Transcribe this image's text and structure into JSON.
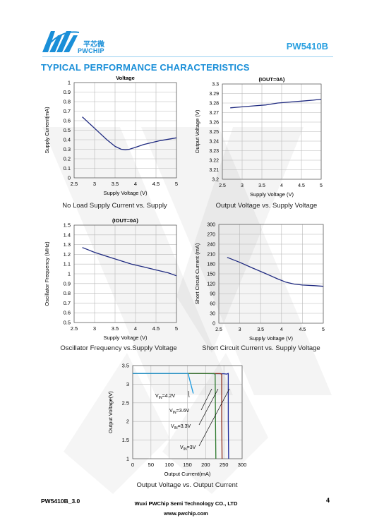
{
  "header": {
    "logo_cn": "平芯微",
    "logo_en": "PWCHIP",
    "part_number": "PW5410B",
    "section_title": "TYPICAL PERFORMANCE CHARACTERISTICS"
  },
  "captions": [
    "No Load Supply Current vs. Supply",
    "Output Voltage vs. Supply Voltage",
    "Oscillator Frequency vs.Supply Voltage",
    "Short Circuit Current vs. Supply Voltage",
    "Output Voltage vs. Output Current"
  ],
  "footer": {
    "doc_id": "PW5410B_3.0",
    "company": "Wuxi PWChip Semi Technology CO., LTD",
    "website": "www.pwchip.com",
    "page": "4"
  },
  "chart_data": [
    {
      "type": "line",
      "title": "Voltage",
      "xlabel": "Supply Voltage (V)",
      "ylabel": "Supply Current(mA)",
      "xlim": [
        2.5,
        5
      ],
      "ylim": [
        0,
        1
      ],
      "xticks": [
        2.5,
        3,
        3.5,
        4,
        4.5,
        5
      ],
      "xtick_labels": [
        "2.5",
        "3",
        "3.5",
        "4",
        "4.5",
        "5"
      ],
      "yticks": [
        0,
        0.1,
        0.2,
        0.3,
        0.4,
        0.5,
        0.6,
        0.7,
        0.8,
        0.9,
        1
      ],
      "ytick_labels": [
        "0",
        "0.1",
        "0.2",
        "0.3",
        "0.4",
        "0.5",
        "0.6",
        "0.7",
        "0.8",
        "0.9",
        "1"
      ],
      "grid": true,
      "series": [
        {
          "color": "#1f2a80",
          "x": [
            2.7,
            2.9,
            3.1,
            3.3,
            3.5,
            3.65,
            3.75,
            3.85,
            4.0,
            4.2,
            4.4,
            4.6,
            4.8,
            5.0
          ],
          "y": [
            0.64,
            0.56,
            0.48,
            0.4,
            0.33,
            0.3,
            0.295,
            0.3,
            0.32,
            0.35,
            0.37,
            0.39,
            0.405,
            0.42
          ]
        }
      ]
    },
    {
      "type": "line",
      "title": "(IOUT=0A)",
      "xlabel": "Supply Voltage (V)",
      "ylabel": "Output Voltage (V)",
      "xlim": [
        2.5,
        5
      ],
      "ylim": [
        3.2,
        3.3
      ],
      "xticks": [
        2.5,
        3,
        3.5,
        4,
        4.5,
        5
      ],
      "xtick_labels": [
        "2.5",
        "3",
        "3.5",
        "4",
        "4.5",
        "5"
      ],
      "yticks": [
        3.2,
        3.21,
        3.22,
        3.23,
        3.24,
        3.25,
        3.26,
        3.27,
        3.28,
        3.29,
        3.3
      ],
      "ytick_labels": [
        "3.2",
        "3.21",
        "3.22",
        "3.23",
        "3.24",
        "3.25",
        "3.26",
        "3.27",
        "3.28",
        "3.29",
        "3.3"
      ],
      "grid": true,
      "series": [
        {
          "color": "#1f2a80",
          "x": [
            2.7,
            3.0,
            3.3,
            3.6,
            3.9,
            4.2,
            4.5,
            4.8,
            5.0
          ],
          "y": [
            3.275,
            3.276,
            3.277,
            3.278,
            3.28,
            3.281,
            3.282,
            3.283,
            3.284
          ]
        }
      ]
    },
    {
      "type": "line",
      "title": "(IOUT=0A)",
      "xlabel": "Supply Voltage (V)",
      "ylabel": "Oscillator Frequency (MHz)",
      "xlim": [
        2.5,
        5
      ],
      "ylim": [
        0.5,
        1.5
      ],
      "xticks": [
        2.5,
        3,
        3.5,
        4,
        4.5,
        5
      ],
      "xtick_labels": [
        "2.5",
        "3",
        "3.5",
        "4",
        "4.5",
        "5"
      ],
      "yticks": [
        0.5,
        0.6,
        0.7,
        0.8,
        0.9,
        1,
        1.1,
        1.2,
        1.3,
        1.4,
        1.5
      ],
      "ytick_labels": [
        "0.5",
        "0.6",
        "0.7",
        "0.8",
        "0.9",
        "1",
        "1.1",
        "1.2",
        "1.3",
        "1.4",
        "1.5"
      ],
      "grid": true,
      "series": [
        {
          "color": "#1f2a80",
          "x": [
            2.7,
            3.0,
            3.3,
            3.6,
            3.9,
            4.2,
            4.5,
            4.8,
            5.0
          ],
          "y": [
            1.27,
            1.22,
            1.18,
            1.14,
            1.1,
            1.07,
            1.04,
            1.01,
            0.98
          ]
        }
      ]
    },
    {
      "type": "line",
      "title": "",
      "xlabel": "Supply Voltage (V)",
      "ylabel": "Short Circuit Current (mA)",
      "xlim": [
        2.5,
        5
      ],
      "ylim": [
        0,
        300
      ],
      "xticks": [
        2.5,
        3,
        3.5,
        4,
        4.5,
        5
      ],
      "xtick_labels": [
        "2.5",
        "3",
        "3.5",
        "4",
        "4.5",
        "5"
      ],
      "yticks": [
        0,
        30,
        60,
        90,
        120,
        150,
        180,
        210,
        240,
        270,
        300
      ],
      "ytick_labels": [
        "0",
        "30",
        "60",
        "90",
        "120",
        "150",
        "180",
        "210",
        "240",
        "270",
        "300"
      ],
      "grid": true,
      "series": [
        {
          "color": "#1f2a80",
          "x": [
            2.7,
            3.0,
            3.3,
            3.6,
            3.9,
            4.1,
            4.3,
            4.5,
            4.8,
            5.0
          ],
          "y": [
            200,
            185,
            168,
            152,
            135,
            125,
            119,
            116,
            114,
            112
          ]
        }
      ]
    },
    {
      "type": "line",
      "title": "",
      "xlabel": "Output Current(mA)",
      "ylabel": "Output Voltage(V)",
      "xlim": [
        0,
        300
      ],
      "ylim": [
        1,
        3.5
      ],
      "xticks": [
        0,
        50,
        100,
        150,
        200,
        250,
        300
      ],
      "xtick_labels": [
        "0",
        "50",
        "100",
        "150",
        "200",
        "250",
        "300"
      ],
      "yticks": [
        1,
        1.5,
        2,
        2.5,
        3,
        3.5
      ],
      "ytick_labels": [
        "1",
        "1.5",
        "2",
        "2.5",
        "3",
        "3.5"
      ],
      "grid": true,
      "series": [
        {
          "name": "VIN=4.2V",
          "color": "#1f2a9a",
          "x": [
            0,
            150,
            250,
            258,
            262,
            262,
            263
          ],
          "y": [
            3.29,
            3.29,
            3.28,
            3.27,
            3.29,
            2.0,
            1.0
          ]
        },
        {
          "name": "VIN=3.6V",
          "color": "#8a2a1a",
          "x": [
            0,
            150,
            240,
            244,
            244,
            245
          ],
          "y": [
            3.29,
            3.29,
            3.285,
            3.27,
            2.0,
            1.0
          ]
        },
        {
          "name": "VIN=3.3V",
          "color": "#2e7a2e",
          "x": [
            0,
            150,
            222,
            226,
            227,
            228
          ],
          "y": [
            3.29,
            3.29,
            3.285,
            3.27,
            2.0,
            1.0
          ]
        },
        {
          "name": "VIN=3V",
          "color": "#1a9ae0",
          "x": [
            0,
            150,
            152,
            166
          ],
          "y": [
            3.29,
            3.29,
            3.28,
            2.75
          ]
        }
      ],
      "annotations": [
        {
          "sub": "VIN=4.2V",
          "pre": "V",
          "mid": "IN",
          "post": "=4.2V"
        },
        {
          "sub": "VIN=3.6V",
          "pre": "V",
          "mid": "IN",
          "post": "=3.6V"
        },
        {
          "sub": "VIN=3.3V",
          "pre": "V",
          "mid": "IN",
          "post": "=3.3V"
        },
        {
          "sub": "VIN=3V",
          "pre": "V",
          "mid": "IN",
          "post": "=3V"
        }
      ]
    }
  ]
}
